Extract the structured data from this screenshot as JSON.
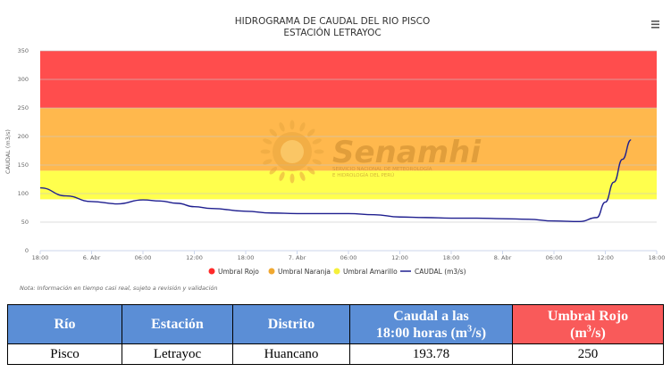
{
  "chart_data": {
    "type": "line",
    "title": "HIDROGRAMA DE CAUDAL DEL RIO PISCO",
    "subtitle": "ESTACIÓN LETRAYOC",
    "ylabel": "CAUDAL (m3/s)",
    "ylim": [
      0,
      350
    ],
    "yticks": [
      0,
      50,
      100,
      150,
      200,
      250,
      300,
      350
    ],
    "xticks": [
      "18:00",
      "6. Abr",
      "06:00",
      "12:00",
      "18:00",
      "7. Abr",
      "06:00",
      "12:00",
      "18:00",
      "8. Abr",
      "06:00",
      "12:00",
      "18:00"
    ],
    "grid": true,
    "legend_position": "bottom",
    "bands": [
      {
        "name": "Umbral Rojo",
        "from": 250,
        "to": 350,
        "color": "#ff4d4d"
      },
      {
        "name": "Umbral Naranja",
        "from": 140,
        "to": 250,
        "color": "#ffb84d"
      },
      {
        "name": "Umbral Amarillo",
        "from": 90,
        "to": 140,
        "color": "#ffff4d"
      }
    ],
    "series": [
      {
        "name": "CAUDAL (m3/s)",
        "color": "#1f1f8f",
        "x": [
          0,
          3,
          6,
          9,
          12,
          14,
          16,
          18,
          20,
          24,
          27,
          30,
          33,
          36,
          39,
          42,
          45,
          48,
          51,
          54,
          57,
          60,
          63,
          65,
          66,
          67,
          68,
          69
        ],
        "y": [
          110,
          96,
          86,
          82,
          89,
          87,
          83,
          77,
          74,
          69,
          66,
          65,
          65,
          65,
          63,
          59,
          58,
          57,
          57,
          56,
          55,
          52,
          51,
          58,
          85,
          120,
          160,
          194
        ]
      }
    ]
  },
  "legend": {
    "items": [
      {
        "label": "Umbral Rojo",
        "color": "#ff2a2a"
      },
      {
        "label": "Umbral Naranja",
        "color": "#f0a830"
      },
      {
        "label": "Umbral Amarillo",
        "color": "#f5f03a"
      },
      {
        "label": "CAUDAL (m3/s)",
        "color": "#1f1f8f"
      }
    ]
  },
  "watermark": {
    "brand": "Senamhi",
    "tagline_1": "SERVICIO NACIONAL DE METEOROLOGÍA",
    "tagline_2": "E HIDROLOGÍA DEL PERÚ"
  },
  "note": "Nota: Información en tiempo casi real, sujeto a revisión y validación",
  "menu_icon": "hamburger-menu-icon",
  "table": {
    "headers": {
      "rio": "Río",
      "estacion": "Estación",
      "distrito": "Distrito",
      "caudal_line1": "Caudal a las",
      "caudal_line2_pre": "18:00 horas (m",
      "caudal_sup": "3",
      "caudal_line2_post": "/s)",
      "umbral_line1": "Umbral Rojo",
      "umbral_line2_pre": "(m",
      "umbral_sup": "3",
      "umbral_line2_post": "/s)"
    },
    "row": {
      "rio": "Pisco",
      "estacion": "Letrayoc",
      "distrito": "Huancano",
      "caudal": "193.78",
      "umbral_rojo": "250"
    }
  },
  "colors": {
    "header_blue": "#5b8ed6",
    "header_red": "#f95a5a"
  }
}
